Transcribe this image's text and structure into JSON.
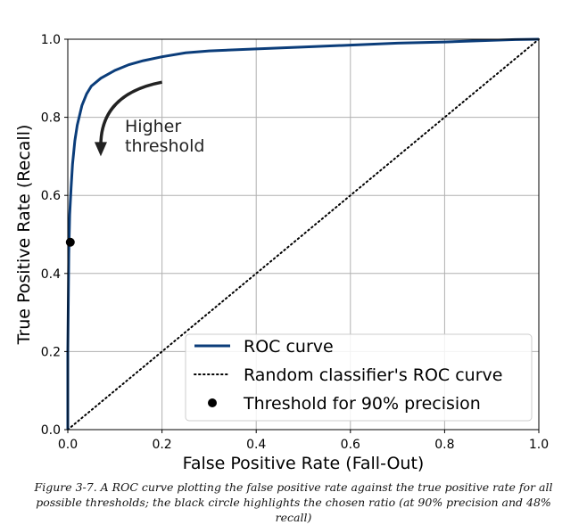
{
  "chart_data": {
    "type": "line",
    "xlabel": "False Positive Rate (Fall-Out)",
    "ylabel": "True Positive Rate (Recall)",
    "xlim": [
      0,
      1
    ],
    "ylim": [
      0,
      1
    ],
    "xticks": [
      "0.0",
      "0.2",
      "0.4",
      "0.6",
      "0.8",
      "1.0"
    ],
    "yticks": [
      "0.0",
      "0.2",
      "0.4",
      "0.6",
      "0.8",
      "1.0"
    ],
    "grid": true,
    "legend_position": "lower-right",
    "series": [
      {
        "name": "ROC curve",
        "style": "solid",
        "color": "#0b3d7a",
        "x": [
          0,
          0.0,
          0.002,
          0.004,
          0.007,
          0.01,
          0.015,
          0.02,
          0.03,
          0.04,
          0.05,
          0.07,
          0.1,
          0.13,
          0.16,
          0.2,
          0.25,
          0.3,
          0.4,
          0.5,
          0.6,
          0.7,
          0.8,
          0.9,
          0.95,
          1.0
        ],
        "y": [
          0,
          0.2,
          0.45,
          0.55,
          0.62,
          0.68,
          0.74,
          0.78,
          0.83,
          0.86,
          0.88,
          0.9,
          0.92,
          0.935,
          0.945,
          0.955,
          0.965,
          0.97,
          0.975,
          0.98,
          0.985,
          0.99,
          0.993,
          0.997,
          0.999,
          1.0
        ]
      },
      {
        "name": "Random classifier's ROC curve",
        "style": "dotted",
        "color": "#000000",
        "x": [
          0,
          1
        ],
        "y": [
          0,
          1
        ]
      }
    ],
    "points": [
      {
        "name": "Threshold for 90% precision",
        "x": 0.0053,
        "y": 0.48,
        "color": "#000000"
      }
    ],
    "annotation": {
      "text_lines": [
        "Higher",
        "threshold"
      ],
      "arrow_from": [
        0.2,
        0.89
      ],
      "arrow_to": [
        0.07,
        0.7
      ]
    }
  },
  "caption": "Figure 3-7. A ROC curve plotting the false positive rate against the true positive rate for all possible thresholds; the black circle highlights the chosen ratio (at 90% precision and 48% recall)"
}
